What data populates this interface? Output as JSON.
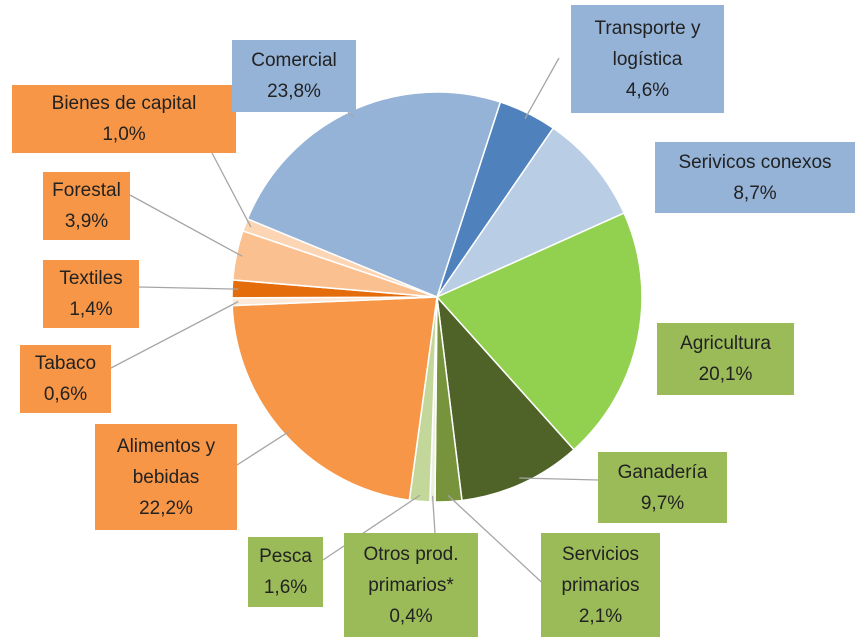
{
  "chart_data": {
    "type": "pie",
    "categories": [
      "Transporte y logística",
      "Serivicos conexos",
      "Agricultura",
      "Ganadería",
      "Servicios primarios",
      "Otros prod. primarios*",
      "Pesca",
      "Alimentos y bebidas",
      "Tabaco",
      "Textiles",
      "Forestal",
      "Bienes de capital",
      "Comercial"
    ],
    "values": [
      4.6,
      8.7,
      20.1,
      9.7,
      2.1,
      0.4,
      1.6,
      22.2,
      0.6,
      1.4,
      3.9,
      1.0,
      23.8
    ],
    "value_labels": [
      "4,6%",
      "8,7%",
      "20,1%",
      "9,7%",
      "2,1%",
      "0,4%",
      "1,6%",
      "22,2%",
      "0,6%",
      "1,4%",
      "3,9%",
      "1,0%",
      "23,8%"
    ],
    "colors": [
      "#4f81bd",
      "#b9cde5",
      "#92d050",
      "#4f6228",
      "#77933c",
      "#ebf1de",
      "#c4d79b",
      "#f79646",
      "#fde9d9",
      "#e46c0a",
      "#fac090",
      "#fcd5b5",
      "#95b3d7"
    ],
    "label_colors": [
      "#95b3d7",
      "#95b3d7",
      "#9bbb59",
      "#9bbb59",
      "#9bbb59",
      "#9bbb59",
      "#9bbb59",
      "#f79646",
      "#f79646",
      "#f79646",
      "#f79646",
      "#f79646",
      "#95b3d7"
    ]
  }
}
